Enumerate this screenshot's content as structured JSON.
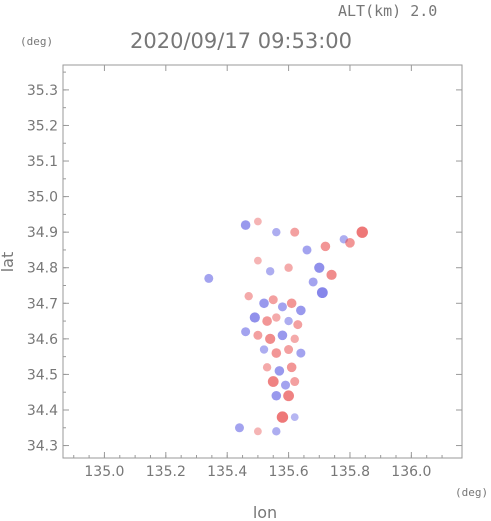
{
  "header": {
    "altitude_label": "ALT(km)  2.0",
    "timestamp": "2020/09/17 09:53:00"
  },
  "chart_data": {
    "type": "scatter",
    "title": "2020/09/17 09:53:00",
    "xlabel": "lon",
    "ylabel": "lat",
    "x_unit": "(deg)",
    "y_unit": "(deg)",
    "xlim": [
      134.865,
      136.165
    ],
    "ylim": [
      34.265,
      35.37
    ],
    "x_ticks": [
      135.0,
      135.2,
      135.4,
      135.6,
      135.8,
      136.0
    ],
    "x_tick_labels": [
      "135.0",
      "135.2",
      "135.4",
      "135.6",
      "135.8",
      "136.0"
    ],
    "y_ticks": [
      34.3,
      34.4,
      34.5,
      34.6,
      34.7,
      34.8,
      34.9,
      35.0,
      35.1,
      35.2,
      35.3
    ],
    "y_tick_labels": [
      "34.3",
      "34.4",
      "34.5",
      "34.6",
      "34.7",
      "34.8",
      "34.9",
      "35.0",
      "35.1",
      "35.2",
      "35.3"
    ],
    "grid": false,
    "colors": {
      "positive": "#e84a4a",
      "negative": "#5050e0",
      "axis": "#9a9a9a",
      "text": "#777777"
    },
    "series": [
      {
        "values": [
          {
            "lon": 135.46,
            "lat": 34.92,
            "v": -0.6
          },
          {
            "lon": 135.5,
            "lat": 34.93,
            "v": 0.3
          },
          {
            "lon": 135.56,
            "lat": 34.9,
            "v": -0.4
          },
          {
            "lon": 135.62,
            "lat": 34.9,
            "v": 0.5
          },
          {
            "lon": 135.66,
            "lat": 34.85,
            "v": -0.5
          },
          {
            "lon": 135.72,
            "lat": 34.86,
            "v": 0.6
          },
          {
            "lon": 135.78,
            "lat": 34.88,
            "v": -0.4
          },
          {
            "lon": 135.84,
            "lat": 34.9,
            "v": 0.9
          },
          {
            "lon": 135.8,
            "lat": 34.87,
            "v": 0.6
          },
          {
            "lon": 135.7,
            "lat": 34.8,
            "v": -0.7
          },
          {
            "lon": 135.74,
            "lat": 34.78,
            "v": 0.7
          },
          {
            "lon": 135.68,
            "lat": 34.76,
            "v": -0.5
          },
          {
            "lon": 135.71,
            "lat": 34.73,
            "v": -0.8
          },
          {
            "lon": 135.5,
            "lat": 34.82,
            "v": 0.3
          },
          {
            "lon": 135.54,
            "lat": 34.79,
            "v": -0.4
          },
          {
            "lon": 135.6,
            "lat": 34.8,
            "v": 0.4
          },
          {
            "lon": 135.34,
            "lat": 34.77,
            "v": -0.5
          },
          {
            "lon": 135.47,
            "lat": 34.72,
            "v": 0.4
          },
          {
            "lon": 135.52,
            "lat": 34.7,
            "v": -0.6
          },
          {
            "lon": 135.55,
            "lat": 34.71,
            "v": 0.5
          },
          {
            "lon": 135.58,
            "lat": 34.69,
            "v": -0.5
          },
          {
            "lon": 135.61,
            "lat": 34.7,
            "v": 0.6
          },
          {
            "lon": 135.64,
            "lat": 34.68,
            "v": -0.6
          },
          {
            "lon": 135.49,
            "lat": 34.66,
            "v": -0.7
          },
          {
            "lon": 135.53,
            "lat": 34.65,
            "v": 0.6
          },
          {
            "lon": 135.56,
            "lat": 34.66,
            "v": 0.4
          },
          {
            "lon": 135.6,
            "lat": 34.65,
            "v": -0.4
          },
          {
            "lon": 135.63,
            "lat": 34.64,
            "v": 0.5
          },
          {
            "lon": 135.46,
            "lat": 34.62,
            "v": -0.5
          },
          {
            "lon": 135.5,
            "lat": 34.61,
            "v": 0.5
          },
          {
            "lon": 135.54,
            "lat": 34.6,
            "v": 0.7
          },
          {
            "lon": 135.58,
            "lat": 34.61,
            "v": -0.6
          },
          {
            "lon": 135.62,
            "lat": 34.6,
            "v": 0.4
          },
          {
            "lon": 135.52,
            "lat": 34.57,
            "v": -0.4
          },
          {
            "lon": 135.56,
            "lat": 34.56,
            "v": 0.6
          },
          {
            "lon": 135.6,
            "lat": 34.57,
            "v": 0.5
          },
          {
            "lon": 135.64,
            "lat": 34.56,
            "v": -0.5
          },
          {
            "lon": 135.53,
            "lat": 34.52,
            "v": 0.4
          },
          {
            "lon": 135.57,
            "lat": 34.51,
            "v": -0.6
          },
          {
            "lon": 135.61,
            "lat": 34.52,
            "v": 0.6
          },
          {
            "lon": 135.55,
            "lat": 34.48,
            "v": 0.8
          },
          {
            "lon": 135.59,
            "lat": 34.47,
            "v": -0.5
          },
          {
            "lon": 135.62,
            "lat": 34.48,
            "v": 0.5
          },
          {
            "lon": 135.56,
            "lat": 34.44,
            "v": -0.6
          },
          {
            "lon": 135.6,
            "lat": 34.44,
            "v": 0.8
          },
          {
            "lon": 135.58,
            "lat": 34.38,
            "v": 0.9
          },
          {
            "lon": 135.62,
            "lat": 34.38,
            "v": -0.3
          },
          {
            "lon": 135.44,
            "lat": 34.35,
            "v": -0.5
          },
          {
            "lon": 135.5,
            "lat": 34.34,
            "v": 0.3
          },
          {
            "lon": 135.56,
            "lat": 34.34,
            "v": -0.4
          }
        ]
      }
    ]
  }
}
